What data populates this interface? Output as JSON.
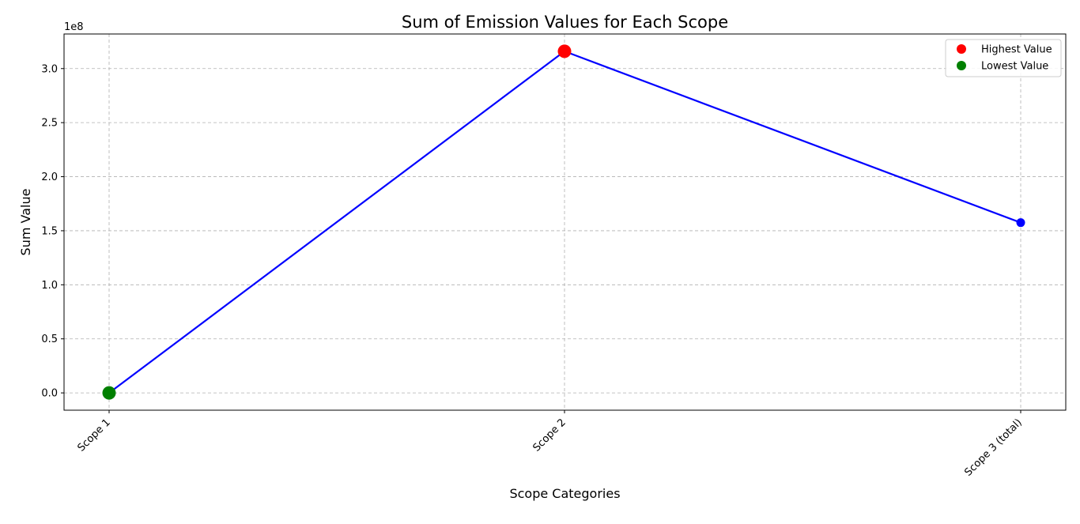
{
  "chart_data": {
    "type": "line",
    "title": "Sum of Emission Values for Each Scope",
    "xlabel": "Scope Categories",
    "ylabel": "Sum Value",
    "y_offset_label": "1e8",
    "y_scale_multiplier": 100000000,
    "categories": [
      "Scope 1",
      "Scope 2",
      "Scope 3 (total)"
    ],
    "series": [
      {
        "values": [
          0.0,
          3.16,
          1.575
        ],
        "color": "#0000ff"
      }
    ],
    "y_ticks": [
      0.0,
      0.5,
      1.0,
      1.5,
      2.0,
      2.5,
      3.0
    ],
    "y_tick_labels": [
      "0.0",
      "0.5",
      "1.0",
      "1.5",
      "2.0",
      "2.5",
      "3.0"
    ],
    "ylim": [
      -0.16,
      3.32
    ],
    "grid": true,
    "highlights": [
      {
        "category": "Scope 2",
        "value": 3.16,
        "color": "#ff0000",
        "label": "Highest Value"
      },
      {
        "category": "Scope 1",
        "value": 0.0,
        "color": "#008000",
        "label": "Lowest Value"
      }
    ],
    "legend": {
      "position": "top-right",
      "entries": [
        {
          "label": "Highest Value",
          "color": "#ff0000"
        },
        {
          "label": "Lowest Value",
          "color": "#008000"
        }
      ]
    }
  }
}
